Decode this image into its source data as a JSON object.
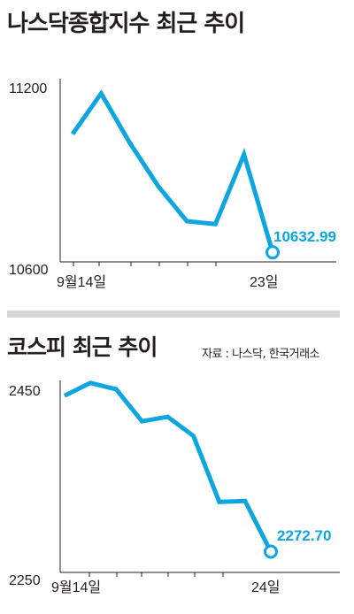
{
  "header": {
    "chart1_title": "나스닥종합지수 최근 추이",
    "chart2_title": "코스피 최근 추이",
    "source": "자료 : 나스닥, 한국거래소"
  },
  "colors": {
    "line": "#0da6e0",
    "axis": "#231f20",
    "divider": "#d8d8d8"
  },
  "chart_data": [
    {
      "type": "line",
      "title": "나스닥종합지수 최근 추이",
      "ylim": [
        10600,
        11200
      ],
      "yticks": [
        "11200",
        "10600"
      ],
      "x_labels": {
        "first": "9월14일",
        "last": "23일"
      },
      "values": [
        11040,
        11180,
        11010,
        10860,
        10740,
        10730,
        10970,
        10632.99
      ],
      "last_label": "10632.99"
    },
    {
      "type": "line",
      "title": "코스피 최근 추이",
      "ylim": [
        2250,
        2450
      ],
      "yticks": [
        "2450",
        "2250"
      ],
      "x_labels": {
        "first": "9월14일",
        "last": "24일"
      },
      "values": [
        2443,
        2457,
        2450,
        2415,
        2420,
        2399,
        2327,
        2328,
        2272.7
      ],
      "last_label": "2272.70"
    }
  ]
}
